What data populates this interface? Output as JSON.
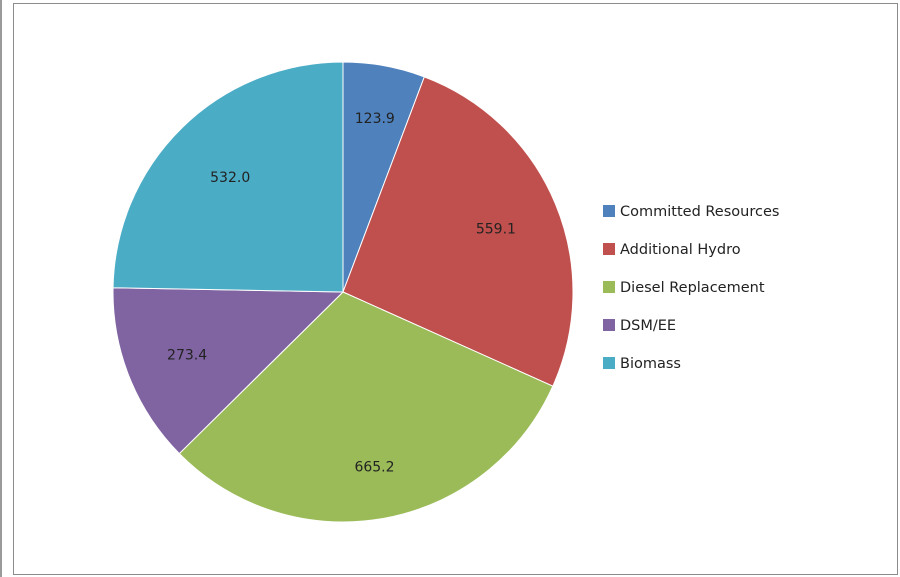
{
  "chart_data": {
    "type": "pie",
    "title": "",
    "categories": [
      "Committed Resources",
      "Additional Hydro",
      "Diesel Replacement",
      "DSM/EE",
      "Biomass"
    ],
    "values": [
      123.9,
      559.1,
      665.2,
      273.4,
      532.0
    ],
    "labels": [
      "123.9",
      "559.1",
      "665.2",
      "273.4",
      "532.0"
    ],
    "colors": [
      "#4f81bd",
      "#c0504d",
      "#9bbb59",
      "#8064a2",
      "#4bacc6"
    ],
    "legend_position": "right",
    "start_angle": "12 o'clock",
    "direction": "clockwise"
  }
}
